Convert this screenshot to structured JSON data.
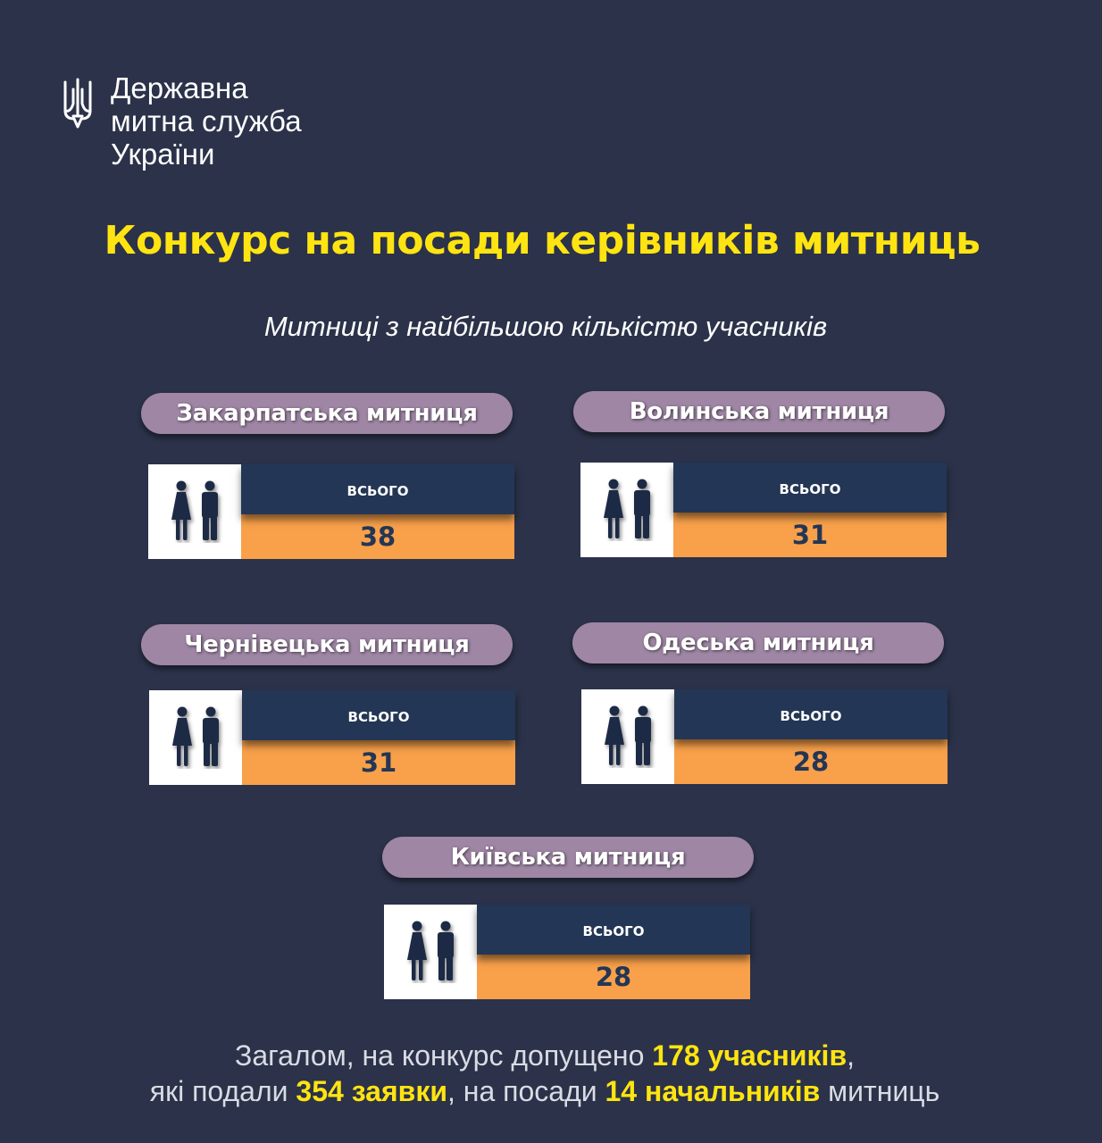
{
  "brand": {
    "emblem_icon": "trident-icon",
    "lines": [
      "Державна",
      "митна служба",
      "України"
    ]
  },
  "title": "Конкурс на посади керівників митниць",
  "subtitle": "Митниці з найбільшою кількістю учасників",
  "customs": [
    {
      "name": "Закарпатська митниця",
      "label": "ВСЬОГО",
      "total": "38",
      "icon": "people-icon"
    },
    {
      "name": "Волинська митниця",
      "label": "ВСЬОГО",
      "total": "31",
      "icon": "people-icon"
    },
    {
      "name": "Чернівецька митниця",
      "label": "ВСЬОГО",
      "total": "31",
      "icon": "people-icon"
    },
    {
      "name": "Одеська митниця",
      "label": "ВСЬОГО",
      "total": "28",
      "icon": "people-icon"
    },
    {
      "name": "Київська митниця",
      "label": "ВСЬОГО",
      "total": "28",
      "icon": "people-icon"
    }
  ],
  "summary": {
    "part1": "Загалом, на конкурс допущено ",
    "highlight1": "178 учасників",
    "part2": ",",
    "part3": "які подали ",
    "highlight2": "354 заявки",
    "part4": ", на посади ",
    "highlight3": "14 начальників",
    "part5": " митниць"
  },
  "colors": {
    "background": "#2b3249",
    "title_yellow": "#ffe411",
    "pill": "#9e86a4",
    "card_navy": "#243655",
    "card_orange": "#f8a04a"
  }
}
